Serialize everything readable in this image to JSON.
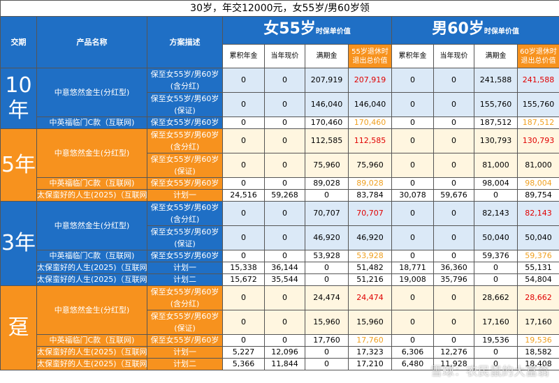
{
  "title": "30岁，年交12000元，女55岁/男60岁领",
  "headers": {
    "term": "交期",
    "product": "产品名称",
    "plan": "方案描述",
    "female": "女55岁",
    "male": "男60岁",
    "suffix": "时保单价值",
    "cols_f": [
      "累积年金",
      "当年现价",
      "满期金",
      "55岁退休时退出总价值"
    ],
    "cols_m": [
      "累积年金",
      "当年现价",
      "满期金",
      "60岁退休时退出总价值"
    ]
  },
  "groups": [
    {
      "term": "10年",
      "color": "blue",
      "rows": [
        {
          "product": "中意悠然金生(分红型)",
          "plan": "保至女55岁/男60岁(含分红)",
          "f": [
            "0",
            "0",
            "207,919",
            "207,919"
          ],
          "m": [
            "0",
            "0",
            "241,588",
            "241,588"
          ],
          "hl": "red"
        },
        {
          "product": "",
          "plan": "保至女55岁/男60岁(保证)",
          "f": [
            "0",
            "0",
            "146,040",
            "146,040"
          ],
          "m": [
            "0",
            "0",
            "155,760",
            "155,760"
          ],
          "hl": ""
        },
        {
          "product": "中英福临门C款（互联网)",
          "plan": "保至女55岁/男60岁",
          "f": [
            "0",
            "0",
            "170,460",
            "170,460"
          ],
          "m": [
            "0",
            "0",
            "187,512",
            "187,512"
          ],
          "hl": "org"
        }
      ]
    },
    {
      "term": "5年",
      "color": "orange",
      "rows": [
        {
          "product": "中意悠然金生(分红型)",
          "plan": "保至女55岁/男60岁(含分红)",
          "f": [
            "0",
            "0",
            "112,585",
            "112,585"
          ],
          "m": [
            "0",
            "0",
            "130,793",
            "130,793"
          ],
          "hl": "red"
        },
        {
          "product": "",
          "plan": "保至女55岁/男60岁(保证)",
          "f": [
            "0",
            "0",
            "75,960",
            "75,960"
          ],
          "m": [
            "0",
            "0",
            "81,000",
            "81,000"
          ],
          "hl": ""
        },
        {
          "product": "中英福临门C款（互联网)",
          "plan": "保至女55岁/男60岁",
          "f": [
            "0",
            "0",
            "89,028",
            "89,028"
          ],
          "m": [
            "0",
            "0",
            "98,004",
            "98,004"
          ],
          "hl": "org"
        },
        {
          "product": "太保蛮好的人生(2025)（互联网)",
          "plan": "计划一",
          "f": [
            "24,516",
            "59,268",
            "0",
            "83,784"
          ],
          "m": [
            "30,078",
            "59,676",
            "0",
            "89,754"
          ],
          "hl": ""
        }
      ]
    },
    {
      "term": "3年",
      "color": "blue",
      "rows": [
        {
          "product": "中意悠然金生(分红型)",
          "plan": "保至女55岁/男60岁(含分红)",
          "f": [
            "0",
            "0",
            "70,707",
            "70,707"
          ],
          "m": [
            "0",
            "0",
            "82,143",
            "82,143"
          ],
          "hl": "red"
        },
        {
          "product": "",
          "plan": "保至女55岁/男60岁(保证)",
          "f": [
            "0",
            "0",
            "46,920",
            "46,920"
          ],
          "m": [
            "0",
            "0",
            "50,040",
            "50,040"
          ],
          "hl": ""
        },
        {
          "product": "中英福临门C款（互联网)",
          "plan": "保至女55岁/男60岁",
          "f": [
            "0",
            "0",
            "53,928",
            "53,928"
          ],
          "m": [
            "0",
            "0",
            "59,376",
            "59,376"
          ],
          "hl": "org"
        },
        {
          "product": "太保蛮好的人生(2025)（互联网)",
          "plan": "计划一",
          "f": [
            "15,338",
            "36,144",
            "0",
            "51,482"
          ],
          "m": [
            "18,771",
            "36,360",
            "0",
            "55,131"
          ],
          "hl": ""
        },
        {
          "product": "太保蛮好的人生(2025)（互联网)",
          "plan": "计划二",
          "f": [
            "15,672",
            "35,544",
            "0",
            "51,216"
          ],
          "m": [
            "19,008",
            "35,796",
            "0",
            "54,804"
          ],
          "hl": ""
        }
      ]
    },
    {
      "term": "趸",
      "color": "orange",
      "rows": [
        {
          "product": "中意悠然金生(分红型)",
          "plan": "保至女55岁/男60岁(含分红)",
          "f": [
            "0",
            "0",
            "24,474",
            "24,474"
          ],
          "m": [
            "0",
            "0",
            "28,662",
            "28,662"
          ],
          "hl": "red"
        },
        {
          "product": "",
          "plan": "保至女55岁/男60岁(保证)",
          "f": [
            "0",
            "0",
            "15,960",
            "15,960"
          ],
          "m": [
            "0",
            "0",
            "17,160",
            "17,160"
          ],
          "hl": ""
        },
        {
          "product": "中英福临门C款（互联网)",
          "plan": "保至女55岁/男60岁",
          "f": [
            "0",
            "0",
            "17,760",
            "17,760"
          ],
          "m": [
            "0",
            "0",
            "19,536",
            "19,536"
          ],
          "hl": "org"
        },
        {
          "product": "太保蛮好的人生(2025)（互联网)",
          "plan": "计划一",
          "f": [
            "5,227",
            "12,096",
            "0",
            "17,323"
          ],
          "m": [
            "6,306",
            "12,276",
            "0",
            "18,582"
          ],
          "hl": ""
        },
        {
          "product": "太保蛮好的人生(2025)（互联网)",
          "plan": "计划二",
          "f": [
            "5,366",
            "11,844",
            "0",
            "17,210"
          ],
          "m": [
            "6,480",
            "11,928",
            "0",
            "18,408"
          ],
          "hl": ""
        }
      ]
    }
  ],
  "watermark": "雪球：农民鼠的大富翁"
}
